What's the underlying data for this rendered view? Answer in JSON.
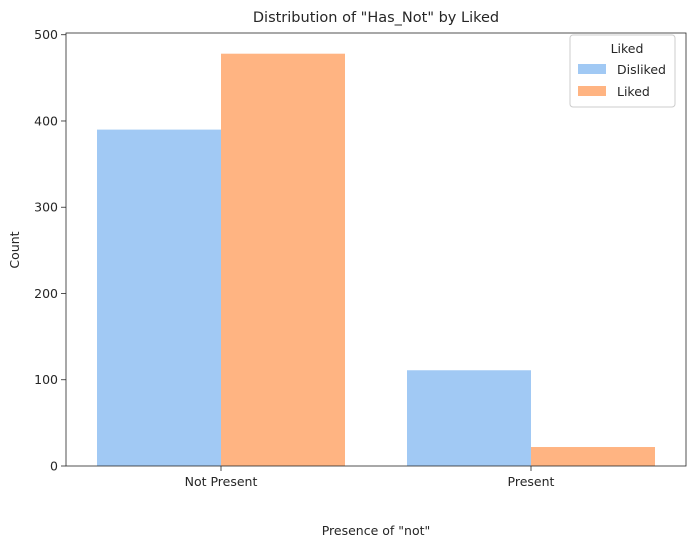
{
  "chart_data": {
    "type": "bar",
    "title": "Distribution of \"Has_Not\" by Liked",
    "xlabel": "Presence of \"not\"",
    "ylabel": "Count",
    "categories": [
      "Not Present",
      "Present"
    ],
    "series": [
      {
        "name": "Disliked",
        "values": [
          390,
          111
        ],
        "color": "#a1c9f4"
      },
      {
        "name": "Liked",
        "values": [
          478,
          22
        ],
        "color": "#ffb482"
      }
    ],
    "ylim": [
      0,
      502
    ],
    "yticks": [
      0,
      100,
      200,
      300,
      400,
      500
    ],
    "grid": false,
    "legend": {
      "title": "Liked",
      "placement": "top-right"
    }
  }
}
